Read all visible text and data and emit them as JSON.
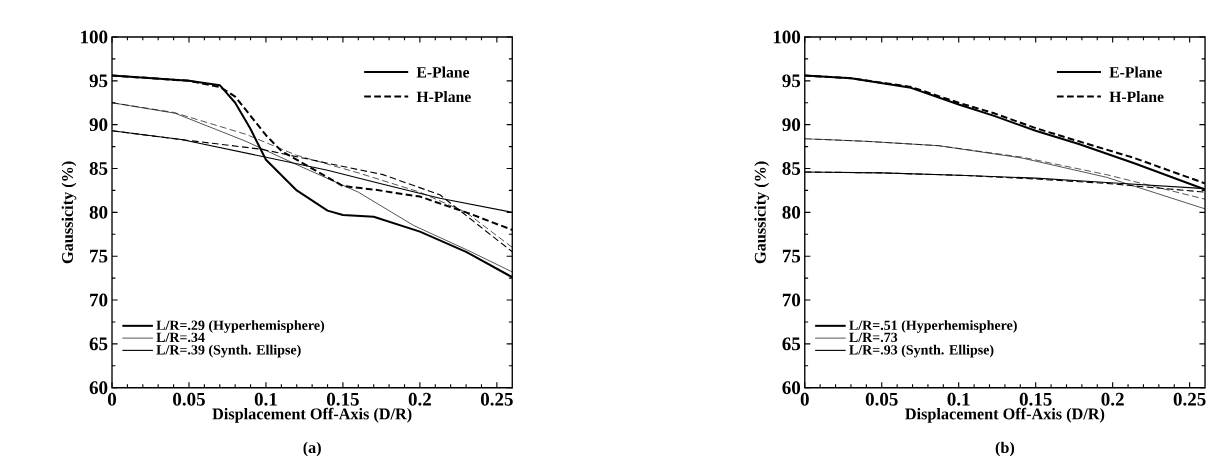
{
  "chart_data": [
    {
      "type": "line",
      "xlabel": "Displacement Off-Axis (D/R)",
      "ylabel": "Gaussicity (%)",
      "xlim": [
        0,
        0.26
      ],
      "ylim": [
        60,
        100
      ],
      "xticks": [
        0,
        0.05,
        0.1,
        0.15,
        0.2,
        0.25
      ],
      "yticks": [
        60,
        65,
        70,
        75,
        80,
        85,
        90,
        95,
        100
      ],
      "legend": "bottom left",
      "grid": false,
      "marker": "none",
      "annotations": [
        "E-Plane",
        "H-Plane",
        "(a)"
      ],
      "series": [
        {
          "name": "L/R=.29  (Hyperhemisphere)",
          "color": "#000000",
          "line_style": "solid",
          "x": [
            0,
            0.05,
            0.07,
            0.08,
            0.09,
            0.1,
            0.12,
            0.14,
            0.15,
            0.17,
            0.2,
            0.23,
            0.26
          ],
          "values": [
            95.6,
            95.0,
            94.5,
            92.5,
            89.5,
            86,
            82.5,
            80.2,
            79.7,
            79.5,
            77.8,
            75.5,
            72.6
          ]
        },
        {
          "color": "#000000",
          "line_style": "dashed",
          "x": [
            0,
            0.05,
            0.07,
            0.08,
            0.09,
            0.1,
            0.11,
            0.13,
            0.15,
            0.17,
            0.2,
            0.23,
            0.26
          ],
          "values": [
            95.6,
            95.0,
            94.3,
            93.2,
            91,
            88.8,
            87,
            85,
            83,
            82.6,
            81.8,
            80,
            78
          ]
        },
        {
          "name": "L/R=.34",
          "color": "#000000",
          "line_style": "solid",
          "x": [
            0,
            0.041,
            0.087,
            0.123,
            0.16,
            0.196,
            0.232,
            0.26
          ],
          "values": [
            92.5,
            91.3,
            88.1,
            85.2,
            82.3,
            78.5,
            75.6,
            73.2
          ]
        },
        {
          "color": "#000000",
          "line_style": "dashed",
          "x": [
            0,
            0.04,
            0.087,
            0.12,
            0.16,
            0.2,
            0.23,
            0.26
          ],
          "values": [
            92.5,
            91.4,
            88.9,
            86.5,
            84.5,
            82.3,
            80,
            76
          ]
        },
        {
          "name": "L/R=.39  (Synth. Ellipse)",
          "color": "#000000",
          "line_style": "solid",
          "x": [
            0,
            0.045,
            0.097,
            0.14,
            0.176,
            0.213,
            0.26
          ],
          "values": [
            89.3,
            88.3,
            86.4,
            84.8,
            83.2,
            81.6,
            80
          ]
        },
        {
          "color": "#000000",
          "line_style": "dashed",
          "x": [
            0,
            0.045,
            0.097,
            0.14,
            0.176,
            0.213,
            0.26
          ],
          "values": [
            89.3,
            88.3,
            87.2,
            85.6,
            84.3,
            82,
            75.5
          ]
        }
      ]
    },
    {
      "type": "line",
      "xlabel": "Displacement Off-Axis (D/R)",
      "ylabel": "Gaussicity (%)",
      "xlim": [
        0,
        0.26
      ],
      "ylim": [
        60,
        100
      ],
      "xticks": [
        0,
        0.05,
        0.1,
        0.15,
        0.2,
        0.25
      ],
      "yticks": [
        60,
        65,
        70,
        75,
        80,
        85,
        90,
        95,
        100
      ],
      "legend": "bottom left",
      "grid": false,
      "marker": "none",
      "annotations": [
        "E-Plane",
        "H-Plane",
        "(b)"
      ],
      "series": [
        {
          "name": "L/R=.51  (Hyperhemisphere)",
          "color": "#000000",
          "line_style": "solid",
          "x": [
            0,
            0.03,
            0.069,
            0.1,
            0.123,
            0.15,
            0.178,
            0.214,
            0.26
          ],
          "values": [
            95.6,
            95.3,
            94.2,
            92.3,
            91.0,
            89.3,
            87.8,
            85.6,
            82.6
          ]
        },
        {
          "color": "#000000",
          "line_style": "dashed",
          "x": [
            0,
            0.03,
            0.069,
            0.1,
            0.123,
            0.15,
            0.178,
            0.214,
            0.26
          ],
          "values": [
            95.6,
            95.3,
            94.3,
            92.5,
            91.3,
            89.6,
            88.1,
            86.2,
            83.3
          ]
        },
        {
          "name": "L/R=.73",
          "color": "#000000",
          "line_style": "solid",
          "x": [
            0,
            0.04,
            0.087,
            0.141,
            0.196,
            0.26
          ],
          "values": [
            88.4,
            88.1,
            87.6,
            86.2,
            84,
            80.4
          ]
        },
        {
          "color": "#000000",
          "line_style": "dashed",
          "x": [
            0,
            0.04,
            0.087,
            0.141,
            0.196,
            0.26
          ],
          "values": [
            88.4,
            88.1,
            87.6,
            86.3,
            84.3,
            81.5
          ]
        },
        {
          "name": "L/R=.93  (Synth. Ellipse)",
          "color": "#000000",
          "line_style": "solid",
          "x": [
            0,
            0.05,
            0.105,
            0.15,
            0.196,
            0.26
          ],
          "values": [
            84.6,
            84.5,
            84.2,
            83.9,
            83.4,
            82.7
          ]
        },
        {
          "color": "#000000",
          "line_style": "dashed",
          "x": [
            0,
            0.05,
            0.105,
            0.15,
            0.196,
            0.26
          ],
          "values": [
            84.6,
            84.5,
            84.2,
            83.8,
            83.3,
            82.3
          ]
        }
      ]
    }
  ]
}
